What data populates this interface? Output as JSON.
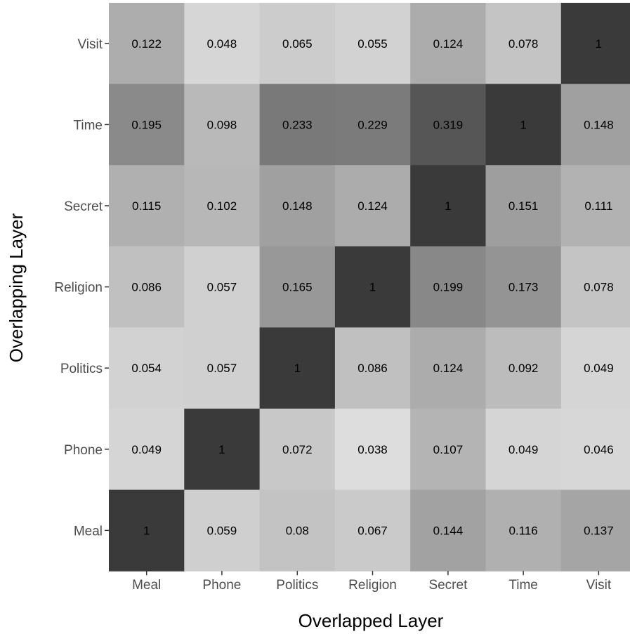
{
  "chart_data": {
    "type": "heatmap",
    "xlabel": "Overlapped Layer",
    "ylabel": "Overlapping Layer",
    "x_categories": [
      "Meal",
      "Phone",
      "Politics",
      "Religion",
      "Secret",
      "Time",
      "Visit"
    ],
    "y_categories_top_to_bottom": [
      "Visit",
      "Time",
      "Secret",
      "Religion",
      "Politics",
      "Phone",
      "Meal"
    ],
    "values": [
      [
        "0.122",
        "0.048",
        "0.065",
        "0.055",
        "0.124",
        "0.078",
        "1"
      ],
      [
        "0.195",
        "0.098",
        "0.233",
        "0.229",
        "0.319",
        "1",
        "0.148"
      ],
      [
        "0.115",
        "0.102",
        "0.148",
        "0.124",
        "1",
        "0.151",
        "0.111"
      ],
      [
        "0.086",
        "0.057",
        "0.165",
        "1",
        "0.199",
        "0.173",
        "0.078"
      ],
      [
        "0.054",
        "0.057",
        "1",
        "0.086",
        "0.124",
        "0.092",
        "0.049"
      ],
      [
        "0.049",
        "1",
        "0.072",
        "0.038",
        "0.107",
        "0.049",
        "0.046"
      ],
      [
        "1",
        "0.059",
        "0.08",
        "0.067",
        "0.144",
        "0.116",
        "0.137"
      ]
    ],
    "color_scale": {
      "low": "#ffffff",
      "high": "#3a3a3a",
      "diagonal": "#3a3a3a"
    },
    "legend": "none",
    "grid": false
  }
}
